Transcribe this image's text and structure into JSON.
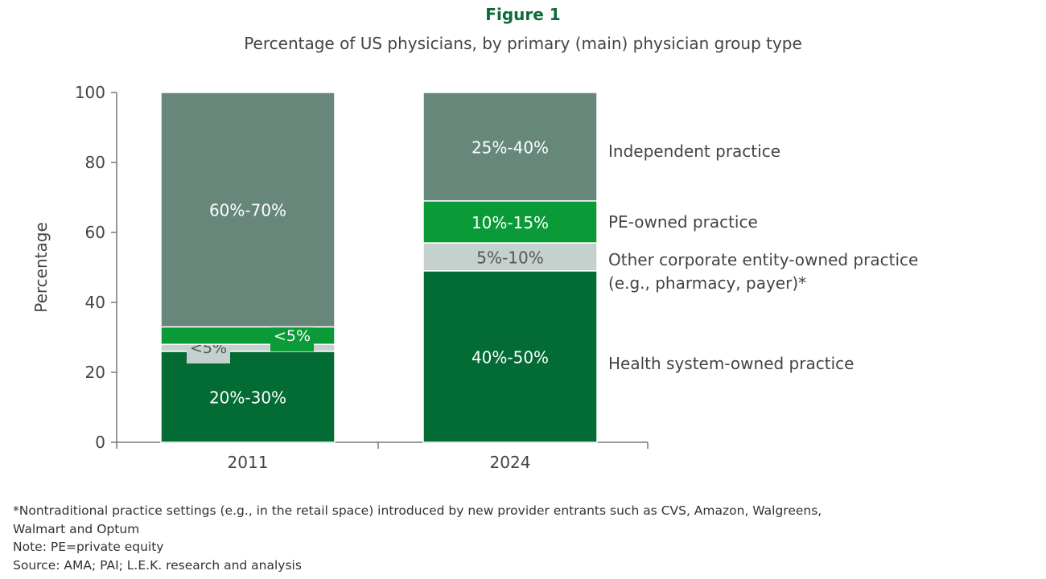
{
  "chart_data": {
    "type": "bar",
    "stacked": true,
    "title": "Figure 1",
    "subtitle": "Percentage of US physicians, by primary (main) physician group type",
    "xlabel": "",
    "ylabel": "Percentage",
    "ylim": [
      0,
      100
    ],
    "yticks": [
      0,
      20,
      40,
      60,
      80,
      100
    ],
    "grid": false,
    "legend_placement": "right (direct labels)",
    "categories": [
      "2011",
      "2024"
    ],
    "series": [
      {
        "name": "Health system-owned practice",
        "color": "#036b34",
        "values": [
          26,
          49
        ],
        "labels": [
          "20%-30%",
          "40%-50%"
        ]
      },
      {
        "name": "Other corporate entity-owned practice (e.g., pharmacy, payer)*",
        "name_lines": [
          "Other corporate entity-owned practice",
          "(e.g., pharmacy, payer)*"
        ],
        "color": "#c5d1ce",
        "values": [
          2,
          8
        ],
        "labels": [
          "<5%",
          "5%-10%"
        ]
      },
      {
        "name": "PE-owned practice",
        "color": "#0a9a37",
        "values": [
          5,
          12
        ],
        "labels": [
          "<5%",
          "10%-15%"
        ]
      },
      {
        "name": "Independent practice",
        "color": "#66877a",
        "values": [
          67,
          31
        ],
        "labels": [
          "60%-70%",
          "25%-40%"
        ]
      }
    ]
  },
  "notes": [
    "*Nontraditional practice settings (e.g., in the retail space) introduced by new provider entrants such as CVS, Amazon, Walgreens,",
    "Walmart and Optum",
    "Note: PE=private equity",
    "Source: AMA; PAI; L.E.K. research and analysis"
  ]
}
